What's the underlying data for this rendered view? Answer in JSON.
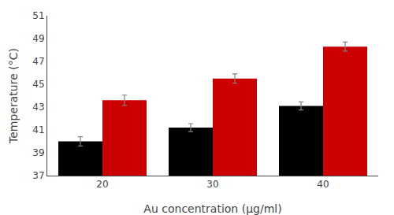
{
  "chart_data": {
    "type": "bar",
    "xlabel": "Au concentration (μg/ml)",
    "ylabel": "Temperature (°C)",
    "categories": [
      "20",
      "30",
      "40"
    ],
    "series": [
      {
        "color": "#000000",
        "values": [
          40.0,
          41.2,
          43.1
        ],
        "errors": [
          0.4,
          0.35,
          0.35
        ]
      },
      {
        "color": "#cc0000",
        "values": [
          43.6,
          45.5,
          48.3
        ],
        "errors": [
          0.45,
          0.4,
          0.4
        ]
      }
    ],
    "ylim": [
      37,
      51
    ],
    "yticks": [
      37,
      39,
      41,
      43,
      45,
      47,
      49,
      51
    ],
    "grid": false
  }
}
